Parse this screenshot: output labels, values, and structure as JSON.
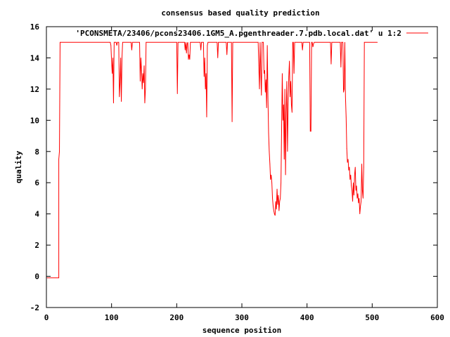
{
  "chart_data": {
    "type": "line",
    "title": "consensus based quality prediction",
    "xlabel": "sequence position",
    "ylabel": "quality",
    "xlim": [
      0,
      600
    ],
    "ylim": [
      -2,
      16
    ],
    "x_ticks": [
      "0",
      "100",
      "200",
      "300",
      "400",
      "500",
      "600"
    ],
    "y_ticks": [
      "-2",
      "0",
      "2",
      "4",
      "6",
      "8",
      "10",
      "12",
      "14",
      "16"
    ],
    "grid": false,
    "legend_position": "top-right",
    "series": [
      {
        "name": "'PCONSMETA/23406/pcons23406.1GM5_A.pgenthreader.7.pdb.local.dat' u 1:2",
        "color": "#ff0000",
        "points": [
          [
            1,
            -0.1
          ],
          [
            19,
            -0.1
          ],
          [
            19,
            7.5
          ],
          [
            20,
            8.0
          ],
          [
            21,
            15
          ],
          [
            98,
            15
          ],
          [
            99,
            14.8
          ],
          [
            100,
            13.8
          ],
          [
            101,
            13.0
          ],
          [
            102,
            14.0
          ],
          [
            103,
            11.1
          ],
          [
            104,
            15
          ],
          [
            107,
            15
          ],
          [
            108,
            14.8
          ],
          [
            109,
            15
          ],
          [
            111,
            15
          ],
          [
            112,
            11.5
          ],
          [
            113,
            12.4
          ],
          [
            114,
            14.0
          ],
          [
            115,
            11.2
          ],
          [
            116,
            14.0
          ],
          [
            117,
            15
          ],
          [
            130,
            15
          ],
          [
            131,
            14.5
          ],
          [
            132,
            15
          ],
          [
            143,
            15
          ],
          [
            144,
            12.5
          ],
          [
            145,
            14.0
          ],
          [
            146,
            13.2
          ],
          [
            147,
            12.0
          ],
          [
            148,
            13.0
          ],
          [
            149,
            12.4
          ],
          [
            150,
            13.5
          ],
          [
            151,
            11.1
          ],
          [
            152,
            12.0
          ],
          [
            153,
            15
          ],
          [
            200,
            15
          ],
          [
            201,
            11.7
          ],
          [
            202,
            15
          ],
          [
            212,
            15
          ],
          [
            213,
            14.5
          ],
          [
            214,
            15
          ],
          [
            215,
            14.3
          ],
          [
            216,
            14.9
          ],
          [
            217,
            15
          ],
          [
            218,
            13.9
          ],
          [
            219,
            14.2
          ],
          [
            220,
            13.9
          ],
          [
            221,
            15
          ],
          [
            236,
            15
          ],
          [
            237,
            14.5
          ],
          [
            238,
            15
          ],
          [
            241,
            15
          ],
          [
            242,
            12.8
          ],
          [
            243,
            14.0
          ],
          [
            244,
            12.0
          ],
          [
            245,
            13.0
          ],
          [
            246,
            10.2
          ],
          [
            247,
            14.8
          ],
          [
            248,
            15
          ],
          [
            262,
            15
          ],
          [
            263,
            14.0
          ],
          [
            264,
            15
          ],
          [
            276,
            15
          ],
          [
            277,
            14.2
          ],
          [
            278,
            15
          ],
          [
            284,
            15
          ],
          [
            285,
            9.9
          ],
          [
            286,
            15
          ],
          [
            325,
            15
          ],
          [
            326,
            13.5
          ],
          [
            327,
            12.0
          ],
          [
            328,
            15
          ],
          [
            329,
            13.2
          ],
          [
            330,
            11.6
          ],
          [
            331,
            15
          ],
          [
            333,
            15
          ],
          [
            334,
            13.0
          ],
          [
            335,
            13.2
          ],
          [
            336,
            11.8
          ],
          [
            337,
            12.6
          ],
          [
            338,
            10.8
          ],
          [
            339,
            14.8
          ],
          [
            340,
            11.5
          ],
          [
            341,
            9.2
          ],
          [
            342,
            8.0
          ],
          [
            343,
            7.2
          ],
          [
            344,
            6.2
          ],
          [
            345,
            6.5
          ],
          [
            346,
            6.0
          ],
          [
            347,
            5.0
          ],
          [
            348,
            4.5
          ],
          [
            349,
            4.2
          ],
          [
            350,
            4.0
          ],
          [
            351,
            3.9
          ],
          [
            352,
            4.8
          ],
          [
            353,
            4.3
          ],
          [
            354,
            5.6
          ],
          [
            355,
            4.6
          ],
          [
            356,
            5.2
          ],
          [
            357,
            4.2
          ],
          [
            358,
            4.8
          ],
          [
            359,
            5.0
          ],
          [
            360,
            6.0
          ],
          [
            361,
            9.5
          ],
          [
            362,
            13.0
          ],
          [
            363,
            10.0
          ],
          [
            364,
            11.0
          ],
          [
            365,
            7.5
          ],
          [
            366,
            12.0
          ],
          [
            367,
            6.5
          ],
          [
            368,
            10.5
          ],
          [
            369,
            12.5
          ],
          [
            370,
            8.0
          ],
          [
            371,
            11.0
          ],
          [
            372,
            12.8
          ],
          [
            373,
            13.8
          ],
          [
            374,
            11.5
          ],
          [
            375,
            12.5
          ],
          [
            376,
            11.0
          ],
          [
            377,
            10.5
          ],
          [
            378,
            15
          ],
          [
            379,
            15
          ],
          [
            380,
            13.0
          ],
          [
            381,
            15
          ],
          [
            392,
            15
          ],
          [
            393,
            14.5
          ],
          [
            394,
            15
          ],
          [
            404,
            15
          ],
          [
            405,
            9.3
          ],
          [
            406,
            9.3
          ],
          [
            407,
            15
          ],
          [
            408,
            15
          ],
          [
            409,
            14.7
          ],
          [
            410,
            14.9
          ],
          [
            411,
            15
          ],
          [
            436,
            15
          ],
          [
            437,
            13.6
          ],
          [
            438,
            15
          ],
          [
            451,
            15
          ],
          [
            452,
            13.4
          ],
          [
            453,
            15
          ],
          [
            455,
            15
          ],
          [
            456,
            11.8
          ],
          [
            457,
            12.0
          ],
          [
            458,
            15
          ],
          [
            459,
            11.5
          ],
          [
            460,
            10.2
          ],
          [
            461,
            8.2
          ],
          [
            462,
            7.3
          ],
          [
            463,
            7.5
          ],
          [
            464,
            6.8
          ],
          [
            465,
            7.0
          ],
          [
            466,
            6.2
          ],
          [
            467,
            6.5
          ],
          [
            468,
            5.8
          ],
          [
            469,
            5.5
          ],
          [
            470,
            4.8
          ],
          [
            471,
            6.0
          ],
          [
            472,
            5.2
          ],
          [
            473,
            6.5
          ],
          [
            474,
            7.0
          ],
          [
            475,
            5.5
          ],
          [
            476,
            5.8
          ],
          [
            477,
            5.0
          ],
          [
            478,
            5.3
          ],
          [
            479,
            4.7
          ],
          [
            480,
            5.0
          ],
          [
            481,
            4.0
          ],
          [
            482,
            4.5
          ],
          [
            483,
            4.8
          ],
          [
            484,
            7.2
          ],
          [
            485,
            5.5
          ],
          [
            486,
            5.0
          ],
          [
            487,
            7.0
          ],
          [
            488,
            15
          ],
          [
            508,
            15
          ]
        ]
      }
    ]
  }
}
